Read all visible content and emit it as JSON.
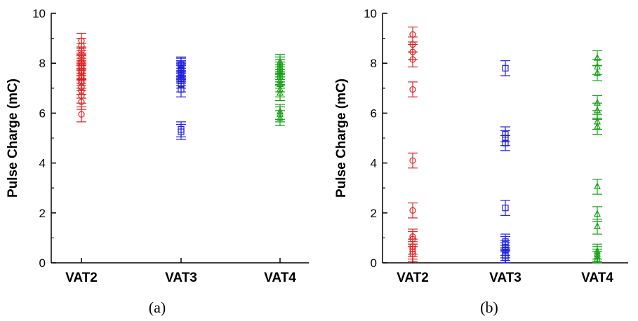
{
  "chart_data": [
    {
      "type": "scatter",
      "panel_label": "(a)",
      "ylabel": "Pulse Charge (mC)",
      "ylim": [
        0,
        10
      ],
      "yticks": [
        "0",
        "2",
        "4",
        "6",
        "8",
        "10"
      ],
      "categories": [
        "VAT2",
        "VAT3",
        "VAT4"
      ],
      "error_bars": "±0.3",
      "series": [
        {
          "category": "VAT2",
          "marker": "circle",
          "color": "#e02020",
          "values": [
            5.95,
            6.45,
            6.7,
            6.9,
            7.05,
            7.2,
            7.3,
            7.4,
            7.5,
            7.6,
            7.65,
            7.7,
            7.8,
            7.9,
            8.0,
            8.05,
            8.2,
            8.35,
            8.5,
            8.7,
            8.9
          ]
        },
        {
          "category": "VAT3",
          "marker": "square",
          "color": "#2020e0",
          "values": [
            5.25,
            5.35,
            6.95,
            7.15,
            7.3,
            7.4,
            7.5,
            7.6,
            7.65,
            7.7,
            7.75,
            7.8,
            7.9,
            7.95
          ]
        },
        {
          "category": "VAT4",
          "marker": "triangle",
          "color": "#10a010",
          "values": [
            5.8,
            5.95,
            6.05,
            6.8,
            6.95,
            7.15,
            7.3,
            7.45,
            7.55,
            7.65,
            7.75,
            7.85,
            7.95,
            8.05
          ]
        }
      ]
    },
    {
      "type": "scatter",
      "panel_label": "(b)",
      "ylabel": "Pulse Charge (mC)",
      "ylim": [
        0,
        10
      ],
      "yticks": [
        "0",
        "2",
        "4",
        "6",
        "8",
        "10"
      ],
      "categories": [
        "VAT2",
        "VAT3",
        "VAT4"
      ],
      "error_bars": "±0.3",
      "series": [
        {
          "category": "VAT2",
          "marker": "circle",
          "color": "#e02020",
          "values": [
            0.35,
            0.45,
            0.55,
            0.65,
            0.95,
            1.05,
            2.1,
            4.1,
            6.95,
            8.15,
            8.45,
            8.75,
            9.15
          ]
        },
        {
          "category": "VAT3",
          "marker": "square",
          "color": "#2020e0",
          "values": [
            0.2,
            0.3,
            0.4,
            0.5,
            0.6,
            0.75,
            0.85,
            2.2,
            4.8,
            5.0,
            5.15,
            7.8
          ]
        },
        {
          "category": "VAT4",
          "marker": "triangle",
          "color": "#10a010",
          "values": [
            0.15,
            0.25,
            0.35,
            0.45,
            1.45,
            1.95,
            3.05,
            5.45,
            5.65,
            6.1,
            6.4,
            7.6,
            7.85,
            8.2
          ]
        }
      ]
    }
  ]
}
